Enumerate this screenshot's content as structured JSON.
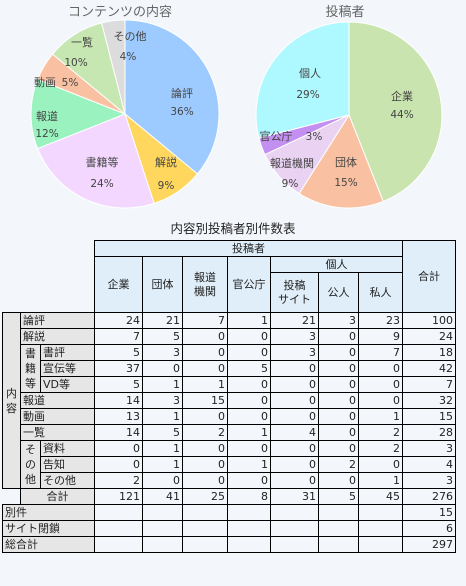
{
  "charts": {
    "left": {
      "title": "コンテンツの内容",
      "slices": [
        {
          "name": "論評",
          "pct": 36,
          "color": "#9ecbff"
        },
        {
          "name": "解説",
          "pct": 9,
          "color": "#ffd75e"
        },
        {
          "name": "書籍等",
          "pct": 24,
          "color": "#f3d7ff"
        },
        {
          "name": "報道",
          "pct": 12,
          "color": "#9af2bf"
        },
        {
          "name": "動画",
          "pct": 5,
          "color": "#f9c1a2"
        },
        {
          "name": "一覧",
          "pct": 10,
          "color": "#c7e7b2"
        },
        {
          "name": "その他",
          "pct": 4,
          "color": "#dcdcdc"
        }
      ]
    },
    "right": {
      "title": "投稿者",
      "slices": [
        {
          "name": "企業",
          "pct": 44,
          "color": "#c9e4ae"
        },
        {
          "name": "団体",
          "pct": 15,
          "color": "#f9c1a2"
        },
        {
          "name": "報道機関",
          "pct": 9,
          "color": "#e9d2f2"
        },
        {
          "name": "官公庁",
          "pct": 3,
          "color": "#c38ff0"
        },
        {
          "name": "個人",
          "pct": 29,
          "color": "#aef8ff"
        }
      ]
    }
  },
  "chart_data": [
    {
      "type": "pie",
      "title": "コンテンツの内容",
      "labels": [
        "論評",
        "解説",
        "書籍等",
        "報道",
        "動画",
        "一覧",
        "その他"
      ],
      "values": [
        36,
        9,
        24,
        12,
        5,
        10,
        4
      ]
    },
    {
      "type": "pie",
      "title": "投稿者",
      "labels": [
        "企業",
        "団体",
        "報道機関",
        "官公庁",
        "個人"
      ],
      "values": [
        44,
        15,
        9,
        3,
        29
      ]
    },
    {
      "type": "table",
      "title": "内容別投稿者別件数表",
      "columns": [
        "企業",
        "団体",
        "報道機関",
        "官公庁",
        "投稿サイト",
        "公人",
        "私人",
        "合計"
      ],
      "rows": [
        {
          "label": "論評",
          "values": [
            24,
            21,
            7,
            1,
            21,
            3,
            23,
            100
          ]
        },
        {
          "label": "解説",
          "values": [
            7,
            5,
            0,
            0,
            3,
            0,
            9,
            24
          ]
        },
        {
          "label": "書評",
          "values": [
            5,
            3,
            0,
            0,
            3,
            0,
            7,
            18
          ]
        },
        {
          "label": "宣伝等",
          "values": [
            37,
            0,
            0,
            5,
            0,
            0,
            0,
            42
          ]
        },
        {
          "label": "VD等",
          "values": [
            5,
            1,
            1,
            0,
            0,
            0,
            0,
            7
          ]
        },
        {
          "label": "報道",
          "values": [
            14,
            3,
            15,
            0,
            0,
            0,
            0,
            32
          ]
        },
        {
          "label": "動画",
          "values": [
            13,
            1,
            0,
            0,
            0,
            0,
            1,
            15
          ]
        },
        {
          "label": "一覧",
          "values": [
            14,
            5,
            2,
            1,
            4,
            0,
            2,
            28
          ]
        },
        {
          "label": "資料",
          "values": [
            0,
            1,
            0,
            0,
            0,
            0,
            2,
            3
          ]
        },
        {
          "label": "告知",
          "values": [
            0,
            1,
            0,
            1,
            0,
            2,
            0,
            4
          ]
        },
        {
          "label": "その他",
          "values": [
            2,
            0,
            0,
            0,
            0,
            0,
            1,
            3
          ]
        },
        {
          "label": "合計",
          "values": [
            121,
            41,
            25,
            8,
            31,
            5,
            45,
            276
          ]
        },
        {
          "label": "別件",
          "values": [
            null,
            null,
            null,
            null,
            null,
            null,
            null,
            15
          ]
        },
        {
          "label": "サイト閉鎖",
          "values": [
            null,
            null,
            null,
            null,
            null,
            null,
            null,
            6
          ]
        },
        {
          "label": "総合計",
          "values": [
            null,
            null,
            null,
            null,
            null,
            null,
            null,
            297
          ]
        }
      ]
    }
  ],
  "table": {
    "title": "内容別投稿者別件数表",
    "toshosha": "投稿者",
    "kojin": "個人",
    "gokei": "合計",
    "cols": {
      "kigyo": "企業",
      "dantai": "団体",
      "hodo_kikan_1": "報道",
      "hodo_kikan_2": "機関",
      "kankocho": "官公庁",
      "site_1": "投稿",
      "site_2": "サイト",
      "kojin_pub": "公人",
      "kojin_priv": "私人"
    },
    "group_naiyo": "内容",
    "group_shoseki": "書籍等",
    "group_sonota": "その他",
    "rows": [
      {
        "label": "論評",
        "v": [
          "24",
          "21",
          "7",
          "1",
          "21",
          "3",
          "23",
          "100"
        ]
      },
      {
        "label": "解説",
        "v": [
          "7",
          "5",
          "0",
          "0",
          "3",
          "0",
          "9",
          "24"
        ]
      },
      {
        "label": "書評",
        "v": [
          "5",
          "3",
          "0",
          "0",
          "3",
          "0",
          "7",
          "18"
        ]
      },
      {
        "label": "宣伝等",
        "v": [
          "37",
          "0",
          "0",
          "5",
          "0",
          "0",
          "0",
          "42"
        ]
      },
      {
        "label": "VD等",
        "v": [
          "5",
          "1",
          "1",
          "0",
          "0",
          "0",
          "0",
          "7"
        ]
      },
      {
        "label": "報道",
        "v": [
          "14",
          "3",
          "15",
          "0",
          "0",
          "0",
          "0",
          "32"
        ]
      },
      {
        "label": "動画",
        "v": [
          "13",
          "1",
          "0",
          "0",
          "0",
          "0",
          "1",
          "15"
        ]
      },
      {
        "label": "一覧",
        "v": [
          "14",
          "5",
          "2",
          "1",
          "4",
          "0",
          "2",
          "28"
        ]
      },
      {
        "label": "資料",
        "v": [
          "0",
          "1",
          "0",
          "0",
          "0",
          "0",
          "2",
          "3"
        ]
      },
      {
        "label": "告知",
        "v": [
          "0",
          "1",
          "0",
          "1",
          "0",
          "2",
          "0",
          "4"
        ]
      },
      {
        "label": "その他",
        "v": [
          "2",
          "0",
          "0",
          "0",
          "0",
          "0",
          "1",
          "3"
        ]
      },
      {
        "label": "合計",
        "v": [
          "121",
          "41",
          "25",
          "8",
          "31",
          "5",
          "45",
          "276"
        ]
      }
    ],
    "extra": [
      {
        "label": "別件",
        "total": "15"
      },
      {
        "label": "サイト閉鎖",
        "total": "6"
      },
      {
        "label": "総合計",
        "total": "297"
      }
    ]
  }
}
